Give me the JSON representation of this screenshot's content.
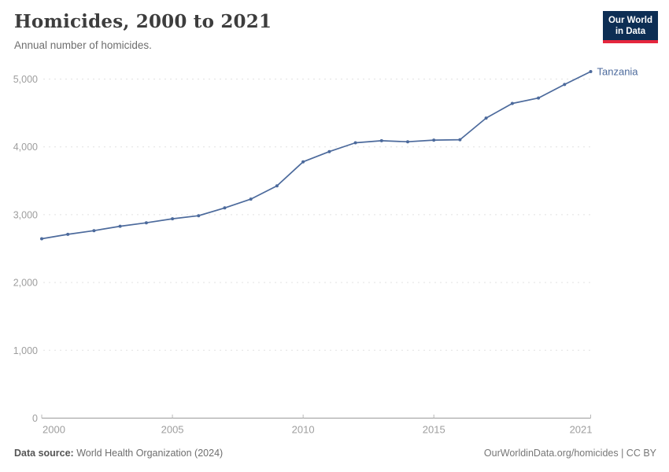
{
  "header": {
    "title": "Homicides, 2000 to 2021",
    "subtitle": "Annual number of homicides.",
    "logo": {
      "line1": "Our World",
      "line2": "in Data"
    }
  },
  "chart_data": {
    "type": "line",
    "title": "Homicides, 2000 to 2021",
    "subtitle": "Annual number of homicides.",
    "x": [
      2000,
      2001,
      2002,
      2003,
      2004,
      2005,
      2006,
      2007,
      2008,
      2009,
      2010,
      2011,
      2012,
      2013,
      2014,
      2015,
      2016,
      2017,
      2018,
      2019,
      2020,
      2021
    ],
    "series": [
      {
        "name": "Tanzania",
        "color": "#4c6a9c",
        "values": [
          2645,
          2710,
          2765,
          2830,
          2880,
          2940,
          2985,
          3100,
          3230,
          3425,
          3780,
          3930,
          4060,
          4090,
          4075,
          4100,
          4105,
          4425,
          4640,
          4720,
          4920,
          5110
        ]
      }
    ],
    "entity_label": "Tanzania",
    "xticks": [
      2000,
      2005,
      2010,
      2015,
      2021
    ],
    "xtick_labels": [
      "2000",
      "2005",
      "2010",
      "2015",
      "2021"
    ],
    "yticks": [
      0,
      1000,
      2000,
      3000,
      4000,
      5000
    ],
    "ytick_labels": [
      "0",
      "1,000",
      "2,000",
      "3,000",
      "4,000",
      "5,000"
    ],
    "ylim": [
      0,
      5200
    ],
    "xlim": [
      2000,
      2021
    ],
    "xlabel": "",
    "ylabel": "",
    "grid": "horizontal-dashed",
    "legend_position": "end-of-line-label"
  },
  "footer": {
    "source_label": "Data source:",
    "source_value": "World Health Organization (2024)",
    "right_text": "OurWorldinData.org/homicides | CC BY"
  },
  "colors": {
    "line": "#4c6a9c",
    "grid": "#e2e2e2",
    "axis_line": "#9a9a9a",
    "tick_label": "#9e9e9e",
    "logo_bg": "#0d2e54",
    "logo_accent": "#e5263d"
  }
}
